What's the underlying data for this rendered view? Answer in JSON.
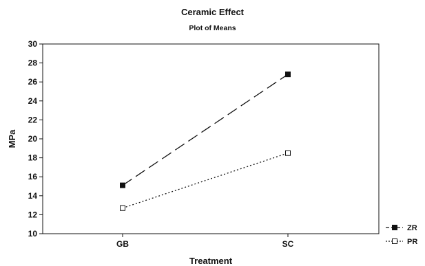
{
  "chart_data": {
    "type": "line",
    "title": "Ceramic Effect",
    "subtitle": "Plot of Means",
    "xlabel": "Treatment",
    "ylabel": "MPa",
    "categories": [
      "GB",
      "SC"
    ],
    "ylim": [
      10,
      30
    ],
    "yticks": [
      10,
      12,
      14,
      16,
      18,
      20,
      22,
      24,
      26,
      28,
      30
    ],
    "grid": false,
    "legend": "bottom-right",
    "series": [
      {
        "name": "ZR",
        "values": [
          15.1,
          26.8
        ],
        "marker": "filled-square",
        "line": "long-dash",
        "color": "#111111"
      },
      {
        "name": "PR",
        "values": [
          12.7,
          18.5
        ],
        "marker": "open-square",
        "line": "dotted",
        "color": "#111111"
      }
    ]
  }
}
